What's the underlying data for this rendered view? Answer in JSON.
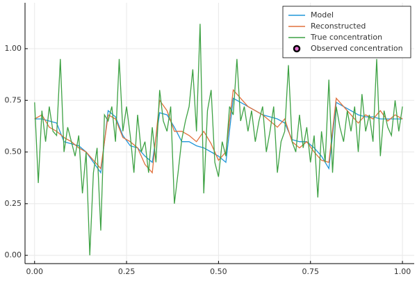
{
  "chart_data": {
    "type": "line",
    "grid": true,
    "legend": "top-right",
    "xlim": [
      -0.026,
      1.032
    ],
    "ylim": [
      -0.04,
      1.222
    ],
    "xticks": [
      {
        "value": 0,
        "label": "0.00"
      },
      {
        "value": 0.25,
        "label": "0.25"
      },
      {
        "value": 0.5,
        "label": "0.50"
      },
      {
        "value": 0.75,
        "label": "0.75"
      },
      {
        "value": 1,
        "label": "1.00"
      }
    ],
    "yticks": [
      {
        "value": 0,
        "label": "0.00"
      },
      {
        "value": 0.25,
        "label": "0.25"
      },
      {
        "value": 0.5,
        "label": "0.50"
      },
      {
        "value": 0.75,
        "label": "0.75"
      },
      {
        "value": 1,
        "label": "1.00"
      }
    ],
    "series": [
      {
        "name": "Model",
        "color": "#1f96d9",
        "x": [
          0,
          0.02,
          0.04,
          0.06,
          0.08,
          0.1,
          0.12,
          0.14,
          0.16,
          0.18,
          0.2,
          0.22,
          0.24,
          0.26,
          0.28,
          0.3,
          0.32,
          0.34,
          0.36,
          0.38,
          0.4,
          0.42,
          0.44,
          0.46,
          0.48,
          0.5,
          0.52,
          0.54,
          0.56,
          0.58,
          0.6,
          0.62,
          0.64,
          0.66,
          0.68,
          0.7,
          0.72,
          0.74,
          0.76,
          0.78,
          0.8,
          0.82,
          0.84,
          0.86,
          0.88,
          0.9,
          0.92,
          0.94,
          0.96,
          0.98,
          1
        ],
        "values": [
          0.66,
          0.66,
          0.65,
          0.64,
          0.55,
          0.54,
          0.53,
          0.5,
          0.45,
          0.4,
          0.7,
          0.67,
          0.58,
          0.53,
          0.52,
          0.48,
          0.45,
          0.69,
          0.68,
          0.62,
          0.55,
          0.55,
          0.53,
          0.52,
          0.5,
          0.48,
          0.45,
          0.76,
          0.74,
          0.72,
          0.7,
          0.68,
          0.67,
          0.66,
          0.64,
          0.56,
          0.55,
          0.55,
          0.52,
          0.48,
          0.42,
          0.74,
          0.72,
          0.7,
          0.68,
          0.67,
          0.67,
          0.66,
          0.66,
          0.66,
          0.66
        ]
      },
      {
        "name": "Reconstructed",
        "color": "#e0703c",
        "x": [
          0,
          0.02,
          0.04,
          0.06,
          0.08,
          0.1,
          0.12,
          0.14,
          0.16,
          0.18,
          0.2,
          0.22,
          0.24,
          0.26,
          0.28,
          0.3,
          0.32,
          0.34,
          0.36,
          0.38,
          0.4,
          0.42,
          0.44,
          0.46,
          0.48,
          0.5,
          0.52,
          0.54,
          0.56,
          0.58,
          0.6,
          0.62,
          0.64,
          0.66,
          0.68,
          0.7,
          0.72,
          0.74,
          0.76,
          0.78,
          0.8,
          0.82,
          0.84,
          0.86,
          0.88,
          0.9,
          0.92,
          0.94,
          0.96,
          0.98,
          1
        ],
        "values": [
          0.66,
          0.68,
          0.62,
          0.6,
          0.57,
          0.55,
          0.52,
          0.5,
          0.46,
          0.42,
          0.68,
          0.66,
          0.57,
          0.55,
          0.52,
          0.44,
          0.4,
          0.75,
          0.7,
          0.6,
          0.6,
          0.58,
          0.55,
          0.6,
          0.54,
          0.46,
          0.5,
          0.8,
          0.76,
          0.72,
          0.7,
          0.68,
          0.65,
          0.62,
          0.66,
          0.55,
          0.52,
          0.55,
          0.5,
          0.46,
          0.45,
          0.76,
          0.72,
          0.68,
          0.64,
          0.68,
          0.66,
          0.7,
          0.65,
          0.68,
          0.66
        ]
      },
      {
        "name": "True concentration",
        "color": "#3da143",
        "x": [
          0,
          0.01,
          0.02,
          0.03,
          0.04,
          0.05,
          0.06,
          0.07,
          0.08,
          0.09,
          0.1,
          0.11,
          0.12,
          0.13,
          0.14,
          0.15,
          0.16,
          0.17,
          0.18,
          0.19,
          0.2,
          0.21,
          0.22,
          0.23,
          0.24,
          0.25,
          0.26,
          0.27,
          0.28,
          0.29,
          0.3,
          0.31,
          0.32,
          0.33,
          0.34,
          0.35,
          0.36,
          0.37,
          0.38,
          0.39,
          0.4,
          0.41,
          0.42,
          0.43,
          0.44,
          0.45,
          0.46,
          0.47,
          0.48,
          0.49,
          0.5,
          0.51,
          0.52,
          0.53,
          0.54,
          0.55,
          0.56,
          0.57,
          0.58,
          0.59,
          0.6,
          0.61,
          0.62,
          0.63,
          0.64,
          0.65,
          0.66,
          0.67,
          0.68,
          0.69,
          0.7,
          0.71,
          0.72,
          0.73,
          0.74,
          0.75,
          0.76,
          0.77,
          0.78,
          0.79,
          0.8,
          0.81,
          0.82,
          0.83,
          0.84,
          0.85,
          0.86,
          0.87,
          0.88,
          0.89,
          0.9,
          0.91,
          0.92,
          0.93,
          0.94,
          0.95,
          0.96,
          0.97,
          0.98,
          0.99,
          1
        ],
        "values": [
          0.74,
          0.35,
          0.7,
          0.55,
          0.72,
          0.6,
          0.58,
          0.95,
          0.5,
          0.62,
          0.55,
          0.48,
          0.58,
          0.3,
          0.5,
          0,
          0.4,
          0.52,
          0.12,
          0.68,
          0.65,
          0.72,
          0.55,
          0.95,
          0.6,
          0.72,
          0.58,
          0.4,
          0.68,
          0.5,
          0.55,
          0.4,
          0.62,
          0.45,
          0.8,
          0.65,
          0.6,
          0.72,
          0.25,
          0.4,
          0.56,
          0.65,
          0.72,
          0.9,
          0.6,
          1.12,
          0.3,
          0.7,
          0.8,
          0.45,
          0.38,
          0.55,
          0.48,
          0.72,
          0.68,
          0.95,
          0.65,
          0.72,
          0.6,
          0.7,
          0.55,
          0.65,
          0.72,
          0.5,
          0.6,
          0.72,
          0.4,
          0.55,
          0.6,
          0.92,
          0.55,
          0.5,
          0.68,
          0.52,
          0.62,
          0.45,
          0.58,
          0.28,
          0.6,
          0.45,
          0.85,
          0.4,
          0.72,
          0.62,
          0.55,
          0.7,
          0.6,
          0.72,
          0.5,
          0.78,
          0.6,
          0.68,
          0.55,
          0.95,
          0.48,
          0.7,
          0.62,
          0.58,
          0.75,
          0.6,
          0.72
        ]
      },
      {
        "name": "Observed concentration",
        "type": "scatter",
        "color": "#e26fd0",
        "x": [],
        "values": []
      }
    ]
  }
}
